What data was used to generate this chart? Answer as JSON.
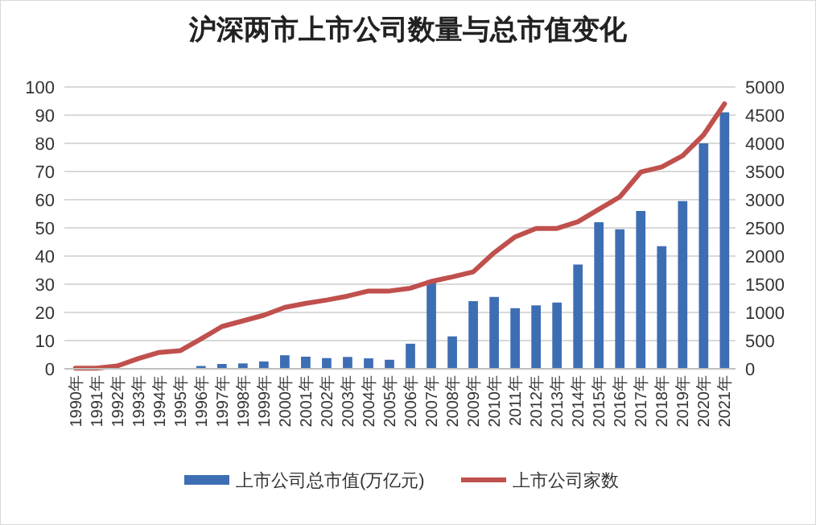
{
  "chart_data": {
    "type": "bar",
    "title": "沪深两市上市公司数量与总市值变化",
    "categories": [
      "1990年",
      "1991年",
      "1992年",
      "1993年",
      "1994年",
      "1995年",
      "1996年",
      "1997年",
      "1998年",
      "1999年",
      "2000年",
      "2001年",
      "2002年",
      "2003年",
      "2004年",
      "2005年",
      "2006年",
      "2007年",
      "2008年",
      "2009年",
      "2010年",
      "2011年",
      "2012年",
      "2013年",
      "2014年",
      "2015年",
      "2016年",
      "2017年",
      "2018年",
      "2019年",
      "2020年",
      "2021年"
    ],
    "series": [
      {
        "name": "上市公司总市值(万亿元)",
        "color": "#3d6eb4",
        "values": [
          0,
          0,
          null,
          null,
          null,
          null,
          1,
          1.7,
          1.9,
          2.6,
          4.8,
          4.3,
          3.8,
          4.2,
          3.7,
          3.2,
          8.9,
          31.5,
          11.5,
          24,
          25.5,
          21.5,
          22.5,
          23.5,
          37,
          52,
          49.5,
          56,
          43.5,
          59.5,
          80,
          91
        ]
      },
      {
        "name": "上市公司家数",
        "type": "line",
        "axis": "y2",
        "color": "#c0504d",
        "values": [
          10,
          10,
          50,
          180,
          290,
          320,
          530,
          750,
          850,
          950,
          1090,
          1160,
          1220,
          1290,
          1380,
          1380,
          1430,
          1550,
          1630,
          1720,
          2060,
          2340,
          2490,
          2490,
          2610,
          2830,
          3050,
          3490,
          3580,
          3780,
          4150,
          4700
        ]
      }
    ],
    "ylim": [
      0,
      100
    ],
    "yticks": [
      0,
      10,
      20,
      30,
      40,
      50,
      60,
      70,
      80,
      90,
      100
    ],
    "y2lim": [
      0,
      5000
    ],
    "y2ticks": [
      0,
      500,
      1000,
      1500,
      2000,
      2500,
      3000,
      3500,
      4000,
      4500,
      5000
    ],
    "grid": "y",
    "legend": "bottom"
  }
}
